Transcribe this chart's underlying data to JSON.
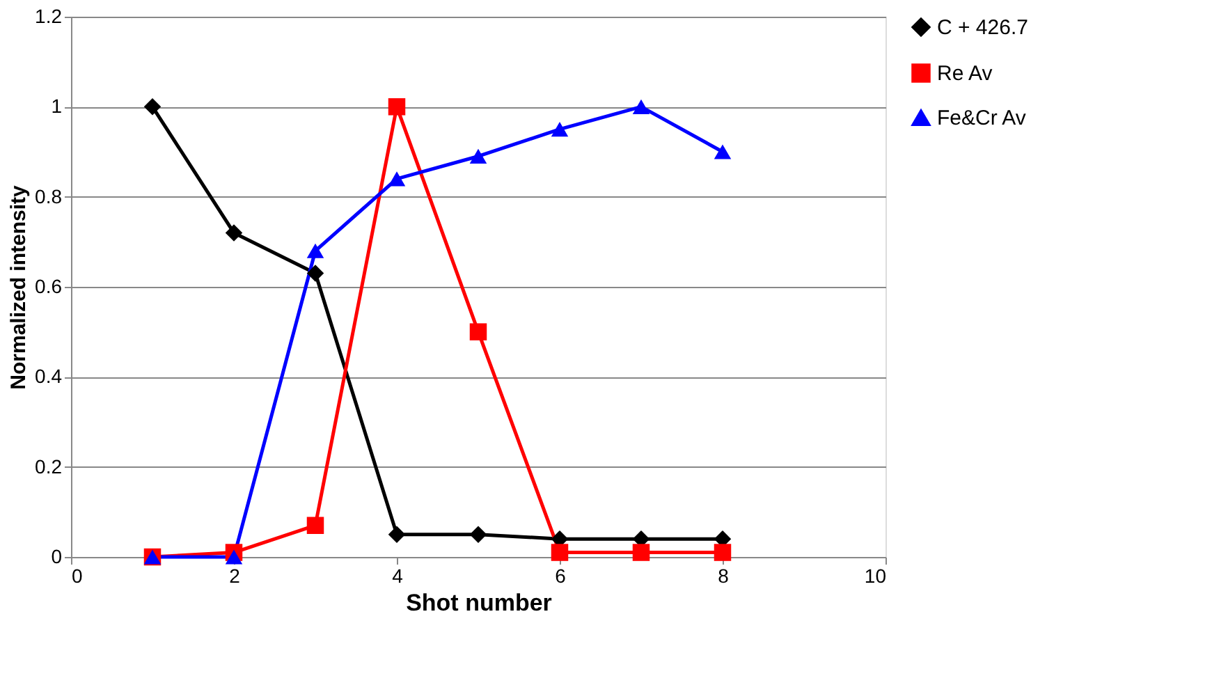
{
  "chart_data": {
    "type": "line",
    "xlabel": "Shot number",
    "ylabel": "Normalized intensity",
    "x": [
      1,
      2,
      3,
      4,
      5,
      6,
      7,
      8
    ],
    "series": [
      {
        "name": "C + 426.7",
        "color": "#000000",
        "line_style": "solid",
        "marker": "diamond",
        "values": [
          1.0,
          0.72,
          0.63,
          0.05,
          0.05,
          0.04,
          0.04,
          0.04
        ]
      },
      {
        "name": "Re Av",
        "color": "#ff0000",
        "line_style": "solid",
        "marker": "square",
        "values": [
          0,
          0.01,
          0.07,
          1.0,
          0.5,
          0.01,
          0.01,
          0.01
        ]
      },
      {
        "name": "Fe&Cr Av",
        "color": "#0000ff",
        "line_style": "solid",
        "marker": "triangle",
        "values": [
          0,
          0,
          0.68,
          0.84,
          0.89,
          0.95,
          1.0,
          0.9
        ]
      }
    ],
    "xlim": [
      0,
      10
    ],
    "xticks": [
      0,
      2,
      4,
      6,
      8,
      10
    ],
    "ylim": [
      0,
      1.2
    ],
    "yticks": [
      0,
      0.2,
      0.4,
      0.6,
      0.8,
      1,
      1.2
    ],
    "grid": "y",
    "legend": "right"
  }
}
